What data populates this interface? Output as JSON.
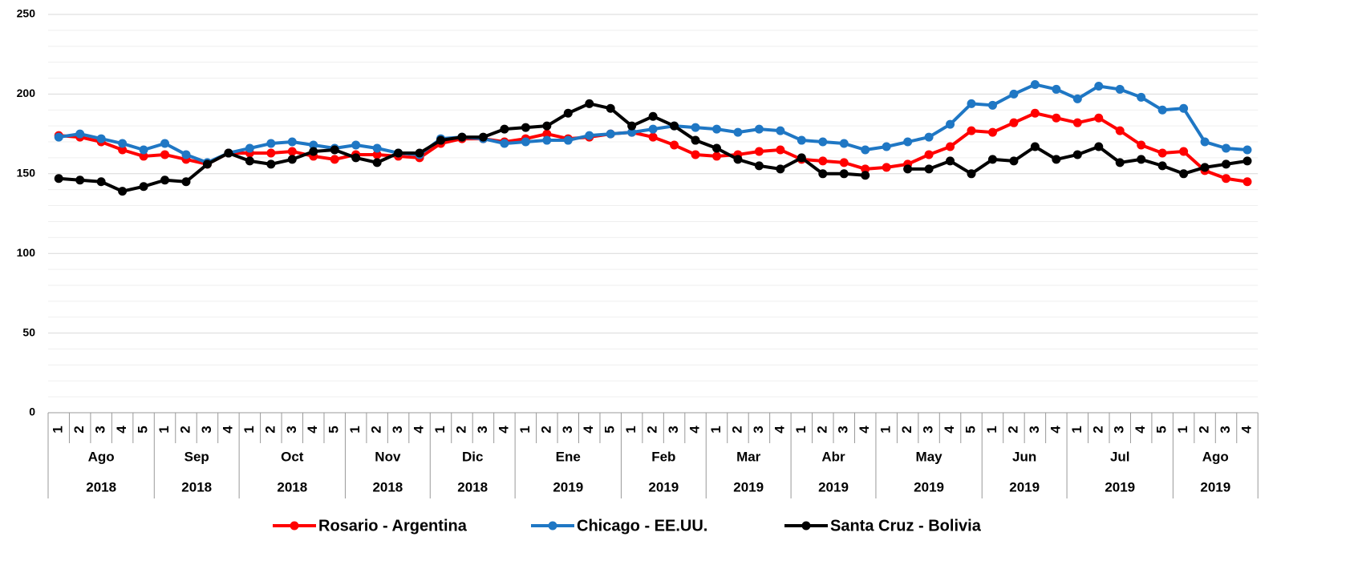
{
  "chart_data": {
    "type": "line",
    "categories": [
      "1",
      "2",
      "3",
      "4",
      "5",
      "1",
      "2",
      "3",
      "4",
      "1",
      "2",
      "3",
      "4",
      "5",
      "1",
      "2",
      "3",
      "4",
      "1",
      "2",
      "3",
      "4",
      "1",
      "2",
      "3",
      "4",
      "5",
      "1",
      "2",
      "3",
      "4",
      "1",
      "2",
      "3",
      "4",
      "1",
      "2",
      "3",
      "4",
      "1",
      "2",
      "3",
      "4",
      "5",
      "1",
      "2",
      "3",
      "4",
      "1",
      "2",
      "3",
      "4",
      "5",
      "1",
      "2",
      "3",
      "4"
    ],
    "months": [
      "Ago",
      "Sep",
      "Oct",
      "Nov",
      "Dic",
      "Ene",
      "Feb",
      "Mar",
      "Abr",
      "May",
      "Jun",
      "Jul",
      "Ago"
    ],
    "years": [
      "2018",
      "2018",
      "2018",
      "2018",
      "2018",
      "2019",
      "2019",
      "2019",
      "2019",
      "2019",
      "2019",
      "2019",
      "2019"
    ],
    "ylim": [
      0,
      250
    ],
    "yticks": [
      0,
      50,
      100,
      150,
      200,
      250
    ],
    "minor_yticks": [
      10,
      20,
      30,
      40,
      60,
      70,
      80,
      90,
      110,
      120,
      130,
      140,
      160,
      170,
      180,
      190,
      210,
      220,
      230,
      240
    ],
    "grid": true,
    "legend": "bottom",
    "series": [
      {
        "name": "Rosario - Argentina",
        "color": "#ff0000",
        "values": [
          174,
          173,
          170,
          165,
          161,
          162,
          159,
          156,
          163,
          163,
          163,
          164,
          161,
          159,
          162,
          162,
          161,
          160,
          169,
          172,
          172,
          170,
          172,
          175,
          172,
          173,
          175,
          176,
          173,
          168,
          162,
          161,
          162,
          164,
          165,
          159,
          158,
          157,
          153,
          154,
          156,
          162,
          167,
          177,
          176,
          182,
          188,
          185,
          182,
          185,
          177,
          168,
          163,
          164,
          152,
          147,
          145
        ]
      },
      {
        "name": "Chicago - EE.UU.",
        "color": "#1f77c4",
        "values": [
          173,
          175,
          172,
          169,
          165,
          169,
          162,
          157,
          163,
          166,
          169,
          170,
          168,
          166,
          168,
          166,
          163,
          162,
          172,
          173,
          172,
          169,
          170,
          171,
          171,
          174,
          175,
          176,
          178,
          180,
          179,
          178,
          176,
          178,
          177,
          171,
          170,
          169,
          165,
          167,
          170,
          173,
          181,
          194,
          193,
          200,
          206,
          203,
          197,
          205,
          203,
          198,
          190,
          191,
          170,
          166,
          165
        ]
      },
      {
        "name": "Santa Cruz - Bolivia",
        "color": "#000000",
        "values": [
          147,
          146,
          145,
          139,
          142,
          146,
          145,
          156,
          163,
          158,
          156,
          159,
          164,
          165,
          160,
          157,
          163,
          163,
          171,
          173,
          173,
          178,
          179,
          180,
          188,
          194,
          191,
          180,
          186,
          180,
          171,
          166,
          159,
          155,
          153,
          160,
          150,
          150,
          149,
          null,
          153,
          153,
          158,
          150,
          159,
          158,
          167,
          159,
          162,
          167,
          157,
          159,
          155,
          150,
          154,
          156,
          158
        ]
      }
    ]
  }
}
